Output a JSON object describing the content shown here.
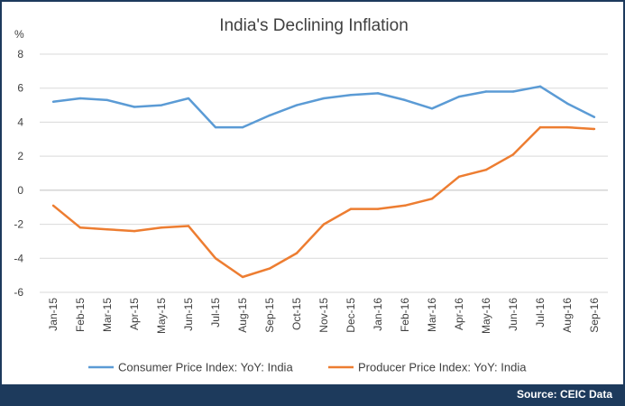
{
  "chart_data": {
    "type": "line",
    "title": "India's Declining Inflation",
    "ylabel": "%",
    "xlabel": "",
    "ylim": [
      -6,
      8
    ],
    "yticks": [
      -6,
      -4,
      -2,
      0,
      2,
      4,
      6,
      8
    ],
    "grid": "horizontal",
    "legend": "bottom",
    "categories": [
      "Jan-15",
      "Feb-15",
      "Mar-15",
      "Apr-15",
      "May-15",
      "Jun-15",
      "Jul-15",
      "Aug-15",
      "Sep-15",
      "Oct-15",
      "Nov-15",
      "Dec-15",
      "Jan-16",
      "Feb-16",
      "Mar-16",
      "Apr-16",
      "May-16",
      "Jun-16",
      "Jul-16",
      "Aug-16",
      "Sep-16"
    ],
    "series": [
      {
        "name": "Consumer Price Index: YoY: India",
        "color": "#5b9bd5",
        "values": [
          5.2,
          5.4,
          5.3,
          4.9,
          5.0,
          5.4,
          3.7,
          3.7,
          4.4,
          5.0,
          5.4,
          5.6,
          5.7,
          5.3,
          4.8,
          5.5,
          5.8,
          5.8,
          6.1,
          5.1,
          4.3
        ]
      },
      {
        "name": "Producer Price Index: YoY: India",
        "color": "#ed7d31",
        "values": [
          -0.9,
          -2.2,
          -2.3,
          -2.4,
          -2.2,
          -2.1,
          -4.0,
          -5.1,
          -4.6,
          -3.7,
          -2.0,
          -1.1,
          -1.1,
          -0.9,
          -0.5,
          0.8,
          1.2,
          2.1,
          3.7,
          3.7,
          3.6
        ]
      }
    ]
  },
  "footer": {
    "source": "Source: CEIC Data"
  }
}
